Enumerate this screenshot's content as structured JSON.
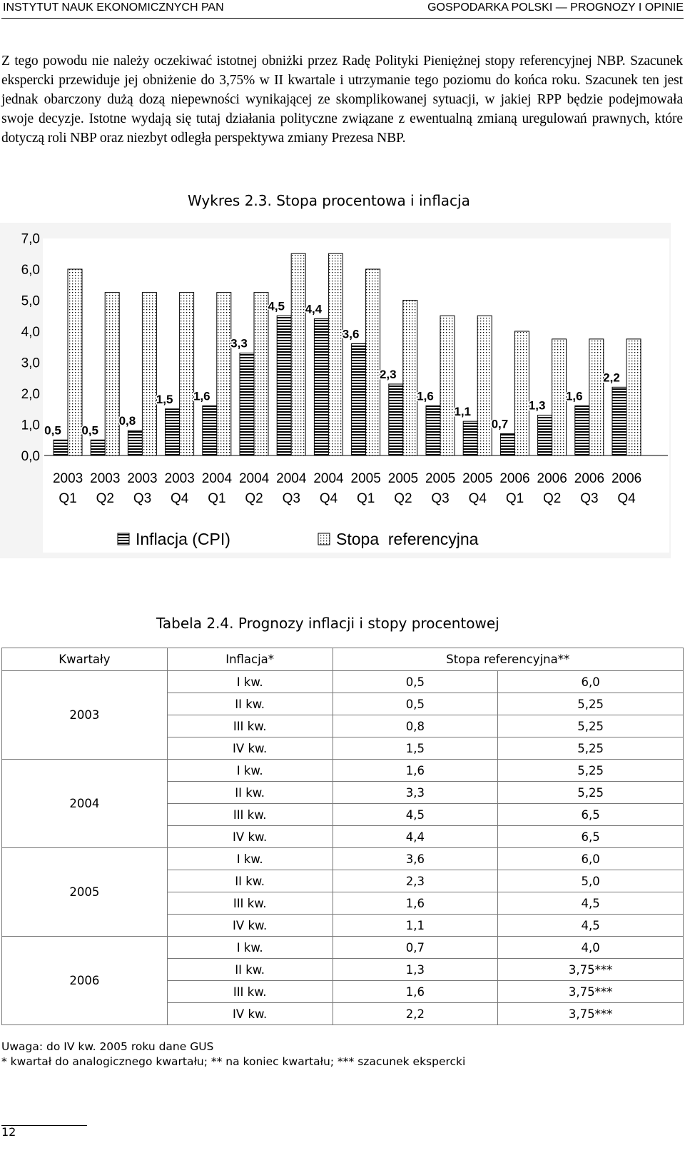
{
  "header": {
    "left": "INSTYTUT NAUK EKONOMICZNYCH PAN",
    "right": "GOSPODARKA POLSKI — PROGNOZY I OPINIE"
  },
  "paragraph": "Z tego powodu nie należy oczekiwać istotnej obniżki przez Radę Polityki Pieniężnej stopy referencyjnej NBP. Szacunek ekspercki przewiduje jej obniżenie do 3,75% w II kwartale i utrzymanie tego poziomu do końca roku. Szacunek ten jest jednak obarczony dużą dozą niepewności wynikającej ze skomplikowanej sytuacji, w jakiej RPP będzie podejmowała swoje decyzje. Istotne wydają się tutaj działania polityczne związane z ewentualną zmianą uregulowań prawnych, które dotyczą roli NBP oraz niezbyt odległa perspektywa zmiany Prezesa NBP.",
  "chart_caption": "Wykres 2.3. Stopa procentowa i inflacja",
  "chart_data": {
    "type": "bar",
    "categories": [
      [
        "2003",
        "Q1"
      ],
      [
        "2003",
        "Q2"
      ],
      [
        "2003",
        "Q3"
      ],
      [
        "2003",
        "Q4"
      ],
      [
        "2004",
        "Q1"
      ],
      [
        "2004",
        "Q2"
      ],
      [
        "2004",
        "Q3"
      ],
      [
        "2004",
        "Q4"
      ],
      [
        "2005",
        "Q1"
      ],
      [
        "2005",
        "Q2"
      ],
      [
        "2005",
        "Q3"
      ],
      [
        "2005",
        "Q4"
      ],
      [
        "2006",
        "Q1"
      ],
      [
        "2006",
        "Q2"
      ],
      [
        "2006",
        "Q3"
      ],
      [
        "2006",
        "Q4"
      ]
    ],
    "series": [
      {
        "name": "Inflacja (CPI)",
        "values": [
          0.5,
          0.5,
          0.8,
          1.5,
          1.6,
          3.3,
          4.5,
          4.4,
          3.6,
          2.3,
          1.6,
          1.1,
          0.7,
          1.3,
          1.6,
          2.2
        ],
        "labels": [
          "0,5",
          "0,5",
          "0,8",
          "1,5",
          "1,6",
          "3,3",
          "4,5",
          "4,4",
          "3,6",
          "2,3",
          "1,6",
          "1,1",
          "0,7",
          "1,3",
          "1,6",
          "2,2"
        ],
        "pattern": "horizontal-stripes"
      },
      {
        "name": "Stopa  referencyjna",
        "values": [
          6.0,
          5.25,
          5.25,
          5.25,
          5.25,
          5.25,
          6.5,
          6.5,
          6.0,
          5.0,
          4.5,
          4.5,
          4.0,
          3.75,
          3.75,
          3.75
        ],
        "pattern": "dots"
      }
    ],
    "yticks": [
      "0,0",
      "1,0",
      "2,0",
      "3,0",
      "4,0",
      "5,0",
      "6,0",
      "7,0"
    ],
    "ylim": [
      0,
      7
    ],
    "grid": false,
    "legend_position": "bottom"
  },
  "table_caption": "Tabela 2.4. Prognozy inflacji i stopy procentowej",
  "table": {
    "headers": [
      "Kwartały",
      "Inflacja*",
      "Stopa referencyjna**"
    ],
    "years": [
      {
        "year": "2003",
        "rows": [
          [
            "I kw.",
            "0,5",
            "6,0"
          ],
          [
            "II kw.",
            "0,5",
            "5,25"
          ],
          [
            "III kw.",
            "0,8",
            "5,25"
          ],
          [
            "IV kw.",
            "1,5",
            "5,25"
          ]
        ]
      },
      {
        "year": "2004",
        "rows": [
          [
            "I kw.",
            "1,6",
            "5,25"
          ],
          [
            "II kw.",
            "3,3",
            "5,25"
          ],
          [
            "III kw.",
            "4,5",
            "6,5"
          ],
          [
            "IV kw.",
            "4,4",
            "6,5"
          ]
        ]
      },
      {
        "year": "2005",
        "rows": [
          [
            "I kw.",
            "3,6",
            "6,0"
          ],
          [
            "II kw.",
            "2,3",
            "5,0"
          ],
          [
            "III kw.",
            "1,6",
            "4,5"
          ],
          [
            "IV kw.",
            "1,1",
            "4,5"
          ]
        ]
      },
      {
        "year": "2006",
        "rows": [
          [
            "I kw.",
            "0,7",
            "4,0"
          ],
          [
            "II kw.",
            "1,3",
            "3,75***"
          ],
          [
            "III kw.",
            "1,6",
            "3,75***"
          ],
          [
            "IV kw.",
            "2,2",
            "3,75***"
          ]
        ]
      }
    ]
  },
  "notes": [
    "Uwaga: do IV kw. 2005 roku dane GUS",
    "* kwartał do analogicznego kwartału; ** na koniec kwartału; *** szacunek ekspercki"
  ],
  "page_number": "12"
}
